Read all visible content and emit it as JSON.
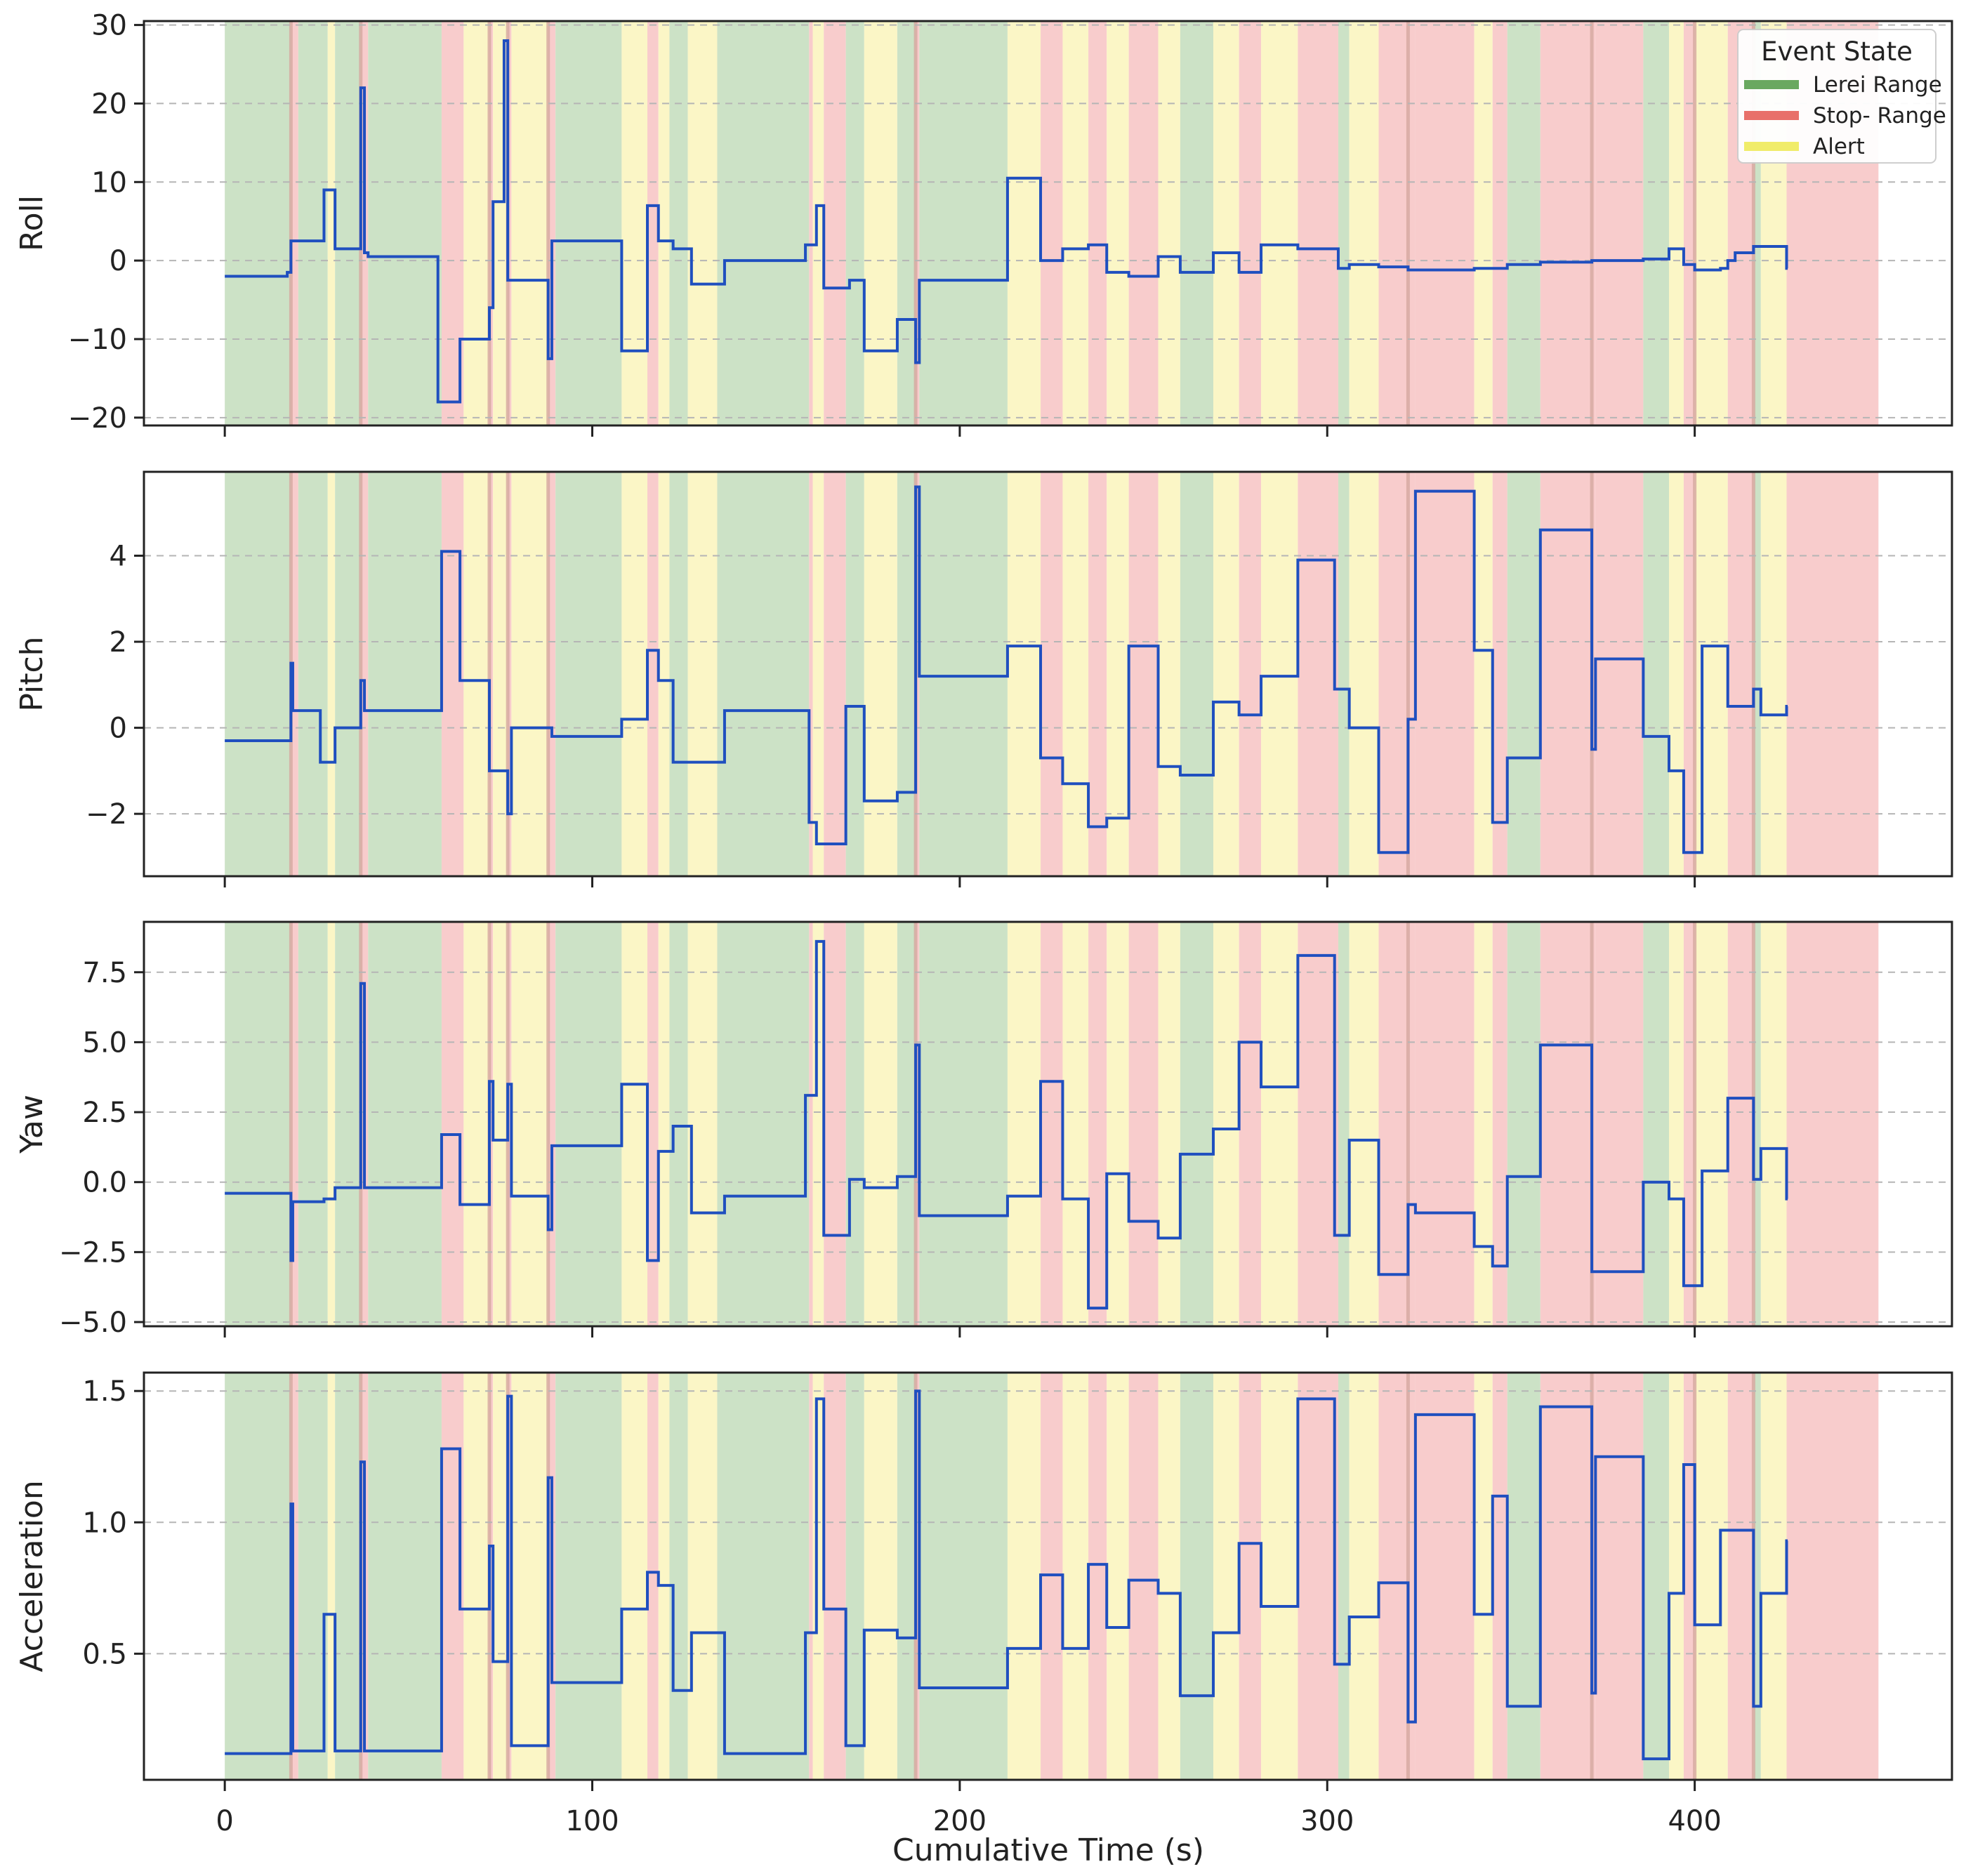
{
  "chart_data": {
    "type": "line",
    "xlabel": "Cumulative Time (s)",
    "xlim": [
      -22,
      470
    ],
    "x_ticks": [
      0,
      100,
      200,
      300,
      400
    ],
    "legend": {
      "title": "Event State",
      "position": "top-right",
      "entries": [
        {
          "label": "Lerei Range",
          "color": "#6aa860"
        },
        {
          "label": "Stop- Range",
          "color": "#e8706a"
        },
        {
          "label": "Alert",
          "color": "#f0ec6a"
        }
      ]
    },
    "state_colors": {
      "green": "#cce2c6",
      "red": "#f8cccc",
      "yellow": "#fbf6c6",
      "line": "#1f4fbf"
    },
    "state_bands": [
      [
        0,
        18,
        "green"
      ],
      [
        18,
        20,
        "red"
      ],
      [
        20,
        28,
        "green"
      ],
      [
        28,
        30,
        "yellow"
      ],
      [
        30,
        37,
        "green"
      ],
      [
        37,
        39,
        "red"
      ],
      [
        39,
        59,
        "green"
      ],
      [
        59,
        65,
        "red"
      ],
      [
        65,
        72,
        "yellow"
      ],
      [
        72,
        73,
        "red"
      ],
      [
        73,
        77,
        "yellow"
      ],
      [
        77,
        78,
        "red"
      ],
      [
        78,
        88,
        "yellow"
      ],
      [
        88,
        90,
        "red"
      ],
      [
        90,
        108,
        "green"
      ],
      [
        108,
        115,
        "yellow"
      ],
      [
        115,
        118,
        "red"
      ],
      [
        118,
        121,
        "yellow"
      ],
      [
        121,
        126,
        "green"
      ],
      [
        126,
        134,
        "yellow"
      ],
      [
        134,
        159,
        "green"
      ],
      [
        159,
        160,
        "red"
      ],
      [
        160,
        163,
        "yellow"
      ],
      [
        163,
        169,
        "red"
      ],
      [
        169,
        174,
        "green"
      ],
      [
        174,
        183,
        "yellow"
      ],
      [
        183,
        188,
        "green"
      ],
      [
        188,
        189,
        "red"
      ],
      [
        189,
        213,
        "green"
      ],
      [
        213,
        222,
        "yellow"
      ],
      [
        222,
        228,
        "red"
      ],
      [
        228,
        235,
        "yellow"
      ],
      [
        235,
        240,
        "red"
      ],
      [
        240,
        246,
        "yellow"
      ],
      [
        246,
        254,
        "red"
      ],
      [
        254,
        260,
        "yellow"
      ],
      [
        260,
        269,
        "green"
      ],
      [
        269,
        276,
        "yellow"
      ],
      [
        276,
        282,
        "red"
      ],
      [
        282,
        292,
        "yellow"
      ],
      [
        292,
        303,
        "red"
      ],
      [
        303,
        306,
        "green"
      ],
      [
        306,
        314,
        "yellow"
      ],
      [
        314,
        322,
        "red"
      ],
      [
        322,
        324,
        "red"
      ],
      [
        324,
        340,
        "red"
      ],
      [
        340,
        345,
        "yellow"
      ],
      [
        345,
        349,
        "red"
      ],
      [
        349,
        358,
        "green"
      ],
      [
        358,
        372,
        "red"
      ],
      [
        372,
        373,
        "red"
      ],
      [
        373,
        386,
        "red"
      ],
      [
        386,
        393,
        "green"
      ],
      [
        393,
        397,
        "yellow"
      ],
      [
        397,
        400,
        "red"
      ],
      [
        400,
        409,
        "yellow"
      ],
      [
        409,
        416,
        "red"
      ],
      [
        416,
        418,
        "green"
      ],
      [
        418,
        425,
        "yellow"
      ],
      [
        425,
        450,
        "red"
      ]
    ],
    "state_lines": [
      18,
      37,
      72,
      77,
      88,
      188,
      322,
      372,
      400,
      416
    ],
    "panels": [
      {
        "name": "roll",
        "ylabel": "Roll",
        "ylim": [
          -21,
          30.5
        ],
        "yticks": [
          -20,
          -10,
          0,
          10,
          20,
          30
        ],
        "tick_labels": [
          "−20",
          "−10",
          "0",
          "10",
          "20",
          "30"
        ],
        "steps": [
          [
            0,
            -2
          ],
          [
            17,
            -1.5
          ],
          [
            18,
            2.5
          ],
          [
            27,
            9
          ],
          [
            30,
            1.5
          ],
          [
            37,
            22
          ],
          [
            38,
            1
          ],
          [
            39,
            0.5
          ],
          [
            58,
            -18
          ],
          [
            64,
            -10
          ],
          [
            72,
            -6
          ],
          [
            73,
            7.5
          ],
          [
            76,
            28
          ],
          [
            77,
            -2.5
          ],
          [
            88,
            -12.5
          ],
          [
            89,
            2.5
          ],
          [
            108,
            -11.5
          ],
          [
            115,
            7
          ],
          [
            118,
            2.5
          ],
          [
            122,
            1.5
          ],
          [
            127,
            -3
          ],
          [
            136,
            0
          ],
          [
            158,
            2
          ],
          [
            161,
            7
          ],
          [
            163,
            -3.5
          ],
          [
            170,
            -2.5
          ],
          [
            174,
            -11.5
          ],
          [
            183,
            -7.5
          ],
          [
            188,
            -13
          ],
          [
            189,
            -2.5
          ],
          [
            213,
            10.5
          ],
          [
            222,
            0
          ],
          [
            228,
            1.5
          ],
          [
            235,
            2
          ],
          [
            240,
            -1.5
          ],
          [
            246,
            -2
          ],
          [
            254,
            0.5
          ],
          [
            260,
            -1.5
          ],
          [
            269,
            1
          ],
          [
            276,
            -1.5
          ],
          [
            282,
            2
          ],
          [
            292,
            1.5
          ],
          [
            301,
            1.5
          ],
          [
            303,
            -1
          ],
          [
            306,
            -0.5
          ],
          [
            314,
            -0.8
          ],
          [
            322,
            -1.2
          ],
          [
            340,
            -1
          ],
          [
            349,
            -0.5
          ],
          [
            358,
            -0.2
          ],
          [
            372,
            0
          ],
          [
            386,
            0.2
          ],
          [
            393,
            1.5
          ],
          [
            397,
            -0.5
          ],
          [
            400,
            -1.2
          ],
          [
            407,
            -1
          ],
          [
            409,
            0
          ],
          [
            411,
            1
          ],
          [
            416,
            1.8
          ],
          [
            425,
            1.2
          ],
          [
            425,
            -1
          ]
        ]
      },
      {
        "name": "pitch",
        "ylabel": "Pitch",
        "ylim": [
          -3.45,
          5.95
        ],
        "yticks": [
          -2,
          0,
          2,
          4
        ],
        "tick_labels": [
          "−2",
          "0",
          "2",
          "4"
        ],
        "steps": [
          [
            0,
            -0.3
          ],
          [
            18,
            1.5
          ],
          [
            18.5,
            0.4
          ],
          [
            26,
            -0.8
          ],
          [
            30,
            0
          ],
          [
            37,
            1.1
          ],
          [
            38,
            0.4
          ],
          [
            59,
            4.1
          ],
          [
            64,
            1.1
          ],
          [
            72,
            -1
          ],
          [
            77,
            -2
          ],
          [
            78,
            0
          ],
          [
            88,
            0
          ],
          [
            89,
            -0.2
          ],
          [
            108,
            0.2
          ],
          [
            115,
            1.8
          ],
          [
            118,
            1.1
          ],
          [
            122,
            -0.8
          ],
          [
            127,
            -0.8
          ],
          [
            136,
            0.4
          ],
          [
            159,
            -2.2
          ],
          [
            161,
            -2.7
          ],
          [
            163,
            -2.7
          ],
          [
            169,
            0.5
          ],
          [
            174,
            -1.7
          ],
          [
            183,
            -1.5
          ],
          [
            188,
            5.6
          ],
          [
            189,
            1.2
          ],
          [
            213,
            1.9
          ],
          [
            222,
            -0.7
          ],
          [
            228,
            -1.3
          ],
          [
            235,
            -2.3
          ],
          [
            240,
            -2.1
          ],
          [
            246,
            1.9
          ],
          [
            254,
            -0.9
          ],
          [
            260,
            -1.1
          ],
          [
            269,
            0.6
          ],
          [
            276,
            0.3
          ],
          [
            282,
            1.2
          ],
          [
            292,
            3.9
          ],
          [
            302,
            0.9
          ],
          [
            306,
            0
          ],
          [
            314,
            -2.9
          ],
          [
            322,
            0.2
          ],
          [
            324,
            5.5
          ],
          [
            340,
            1.8
          ],
          [
            345,
            -2.2
          ],
          [
            349,
            -0.7
          ],
          [
            358,
            4.6
          ],
          [
            372,
            -0.5
          ],
          [
            373,
            1.6
          ],
          [
            386,
            -0.2
          ],
          [
            393,
            -1
          ],
          [
            397,
            -2.9
          ],
          [
            402,
            1.9
          ],
          [
            409,
            0.5
          ],
          [
            416,
            0.9
          ],
          [
            418,
            0.3
          ],
          [
            425,
            0.5
          ]
        ]
      },
      {
        "name": "yaw",
        "ylabel": "Yaw",
        "ylim": [
          -5.15,
          9.3
        ],
        "yticks": [
          -5,
          -2.5,
          0,
          2.5,
          5,
          7.5
        ],
        "tick_labels": [
          "−5.0",
          "−2.5",
          "0.0",
          "2.5",
          "5.0",
          "7.5"
        ],
        "steps": [
          [
            0,
            -0.4
          ],
          [
            18,
            -2.8
          ],
          [
            18.5,
            -0.7
          ],
          [
            27,
            -0.6
          ],
          [
            30,
            -0.2
          ],
          [
            37,
            7.1
          ],
          [
            38,
            -0.2
          ],
          [
            59,
            1.7
          ],
          [
            64,
            -0.8
          ],
          [
            72,
            3.6
          ],
          [
            73,
            1.5
          ],
          [
            77,
            3.5
          ],
          [
            78,
            -0.5
          ],
          [
            88,
            -1.7
          ],
          [
            89,
            1.3
          ],
          [
            108,
            3.5
          ],
          [
            115,
            -2.8
          ],
          [
            118,
            1.1
          ],
          [
            122,
            2
          ],
          [
            127,
            -1.1
          ],
          [
            136,
            -0.5
          ],
          [
            158,
            3.1
          ],
          [
            161,
            8.6
          ],
          [
            163,
            -1.9
          ],
          [
            170,
            0.1
          ],
          [
            174,
            -0.2
          ],
          [
            183,
            0.2
          ],
          [
            188,
            4.9
          ],
          [
            189,
            -1.2
          ],
          [
            213,
            -0.5
          ],
          [
            222,
            3.6
          ],
          [
            228,
            -0.6
          ],
          [
            235,
            -4.5
          ],
          [
            240,
            0.3
          ],
          [
            246,
            -1.4
          ],
          [
            254,
            -2
          ],
          [
            260,
            1
          ],
          [
            269,
            1.9
          ],
          [
            276,
            5
          ],
          [
            282,
            3.4
          ],
          [
            292,
            8.1
          ],
          [
            302,
            -1.9
          ],
          [
            306,
            1.5
          ],
          [
            314,
            -3.3
          ],
          [
            322,
            -0.8
          ],
          [
            324,
            -1.1
          ],
          [
            340,
            -2.3
          ],
          [
            345,
            -3
          ],
          [
            349,
            0.2
          ],
          [
            358,
            4.9
          ],
          [
            372,
            -3.2
          ],
          [
            386,
            0
          ],
          [
            393,
            -0.6
          ],
          [
            397,
            -3.7
          ],
          [
            402,
            0.4
          ],
          [
            409,
            3
          ],
          [
            416,
            0.1
          ],
          [
            418,
            1.2
          ],
          [
            425,
            -0.6
          ]
        ]
      },
      {
        "name": "acceleration",
        "ylabel": "Acceleration",
        "ylim": [
          0.02,
          1.57
        ],
        "yticks": [
          0.5,
          1.0,
          1.5
        ],
        "tick_labels": [
          "0.5",
          "1.0",
          "1.5"
        ],
        "steps": [
          [
            0,
            0.12
          ],
          [
            18,
            1.07
          ],
          [
            18.5,
            0.13
          ],
          [
            27,
            0.65
          ],
          [
            30,
            0.13
          ],
          [
            37,
            1.23
          ],
          [
            38,
            0.13
          ],
          [
            59,
            1.28
          ],
          [
            64,
            0.67
          ],
          [
            72,
            0.91
          ],
          [
            73,
            0.47
          ],
          [
            77,
            1.48
          ],
          [
            78,
            0.15
          ],
          [
            88,
            1.17
          ],
          [
            89,
            0.39
          ],
          [
            108,
            0.67
          ],
          [
            115,
            0.81
          ],
          [
            118,
            0.76
          ],
          [
            122,
            0.36
          ],
          [
            127,
            0.58
          ],
          [
            136,
            0.12
          ],
          [
            158,
            0.58
          ],
          [
            161,
            1.47
          ],
          [
            163,
            0.67
          ],
          [
            169,
            0.15
          ],
          [
            174,
            0.59
          ],
          [
            183,
            0.56
          ],
          [
            188,
            1.5
          ],
          [
            189,
            0.37
          ],
          [
            213,
            0.52
          ],
          [
            222,
            0.8
          ],
          [
            228,
            0.52
          ],
          [
            235,
            0.84
          ],
          [
            240,
            0.6
          ],
          [
            246,
            0.78
          ],
          [
            254,
            0.73
          ],
          [
            260,
            0.34
          ],
          [
            269,
            0.58
          ],
          [
            276,
            0.92
          ],
          [
            282,
            0.68
          ],
          [
            292,
            1.47
          ],
          [
            302,
            0.46
          ],
          [
            306,
            0.64
          ],
          [
            314,
            0.77
          ],
          [
            322,
            0.24
          ],
          [
            324,
            1.41
          ],
          [
            340,
            0.65
          ],
          [
            345,
            1.1
          ],
          [
            349,
            0.3
          ],
          [
            358,
            1.44
          ],
          [
            372,
            0.35
          ],
          [
            373,
            1.25
          ],
          [
            386,
            0.1
          ],
          [
            393,
            0.73
          ],
          [
            397,
            1.22
          ],
          [
            400,
            0.61
          ],
          [
            407,
            0.97
          ],
          [
            416,
            0.3
          ],
          [
            418,
            0.73
          ],
          [
            425,
            0.93
          ]
        ]
      }
    ]
  }
}
